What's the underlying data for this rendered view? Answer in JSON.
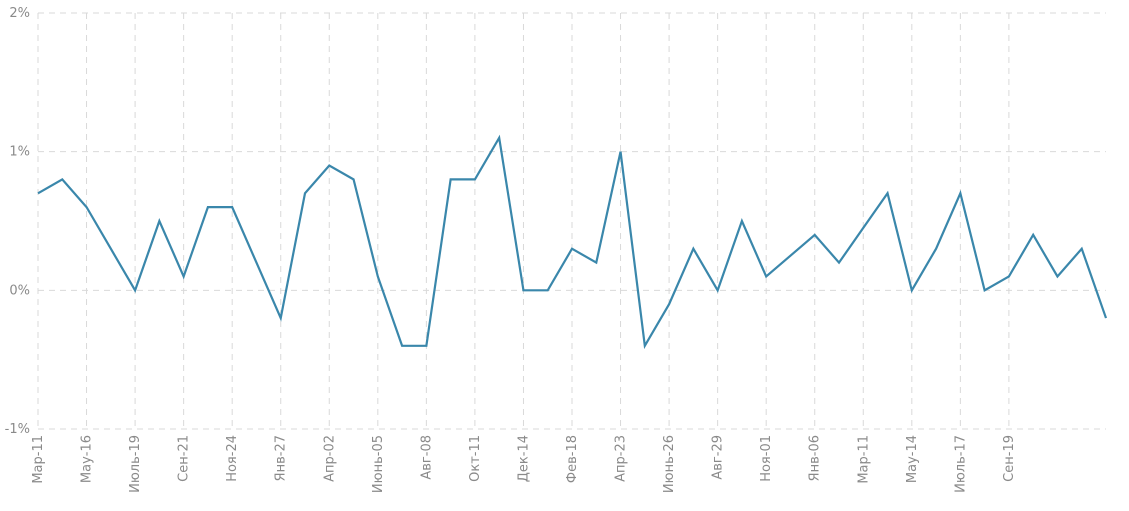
{
  "chart_data": {
    "type": "line",
    "title": "",
    "xlabel": "",
    "ylabel": "",
    "ylim": [
      -1,
      2
    ],
    "y_ticks": [
      "-1%",
      "0%",
      "1%",
      "2%"
    ],
    "y_tick_values": [
      -1,
      0,
      1,
      2
    ],
    "x_tick_labels": [
      "Мар-11",
      "Мау-16",
      "Июль-19",
      "Сен-21",
      "Ноя-24",
      "Янв-27",
      "Апр-02",
      "Июнь-05",
      "Авг-08",
      "Окт-11",
      "Дек-14",
      "Фев-18",
      "Апр-23",
      "Июнь-26",
      "Авг-29",
      "Ноя-01",
      "Янв-06",
      "Мар-11",
      "Мау-14",
      "Июль-17",
      "Сен-19"
    ],
    "x_tick_indices": [
      0,
      2,
      4,
      6,
      8,
      10,
      12,
      14,
      16,
      18,
      20,
      22,
      24,
      26,
      28,
      30,
      32,
      34,
      36,
      38,
      40
    ],
    "grid": true,
    "series": [
      {
        "color": "#3a87ab",
        "values": [
          0.7,
          0.8,
          0.6,
          0.3,
          0.0,
          0.5,
          0.1,
          0.6,
          0.6,
          0.2,
          -0.2,
          0.7,
          0.9,
          0.8,
          0.1,
          -0.4,
          -0.4,
          0.8,
          0.8,
          1.1,
          0.0,
          0.0,
          0.3,
          0.2,
          1.0,
          -0.4,
          -0.1,
          0.3,
          0.0,
          0.5,
          0.1,
          0.25,
          0.4,
          0.2,
          0.45,
          0.7,
          0.0,
          0.3,
          0.7,
          0.0,
          0.1,
          0.4,
          0.1,
          0.3,
          -0.2
        ]
      }
    ]
  }
}
